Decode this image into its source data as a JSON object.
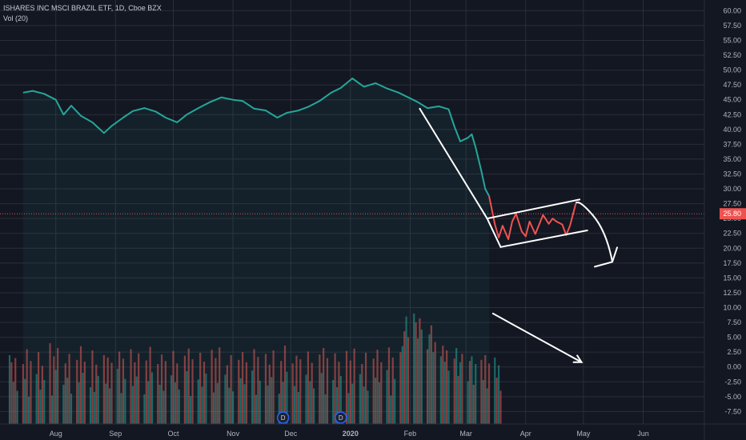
{
  "legend": {
    "symbol_line": "ISHARES INC MSCI BRAZIL ETF, 1D, Cboe BZX",
    "volume_line": "Vol (20)"
  },
  "price_badge": "25.80",
  "colors": {
    "background": "#131722",
    "grid": "#2a2e39",
    "up": "#26a69a",
    "down": "#ef5350",
    "axis_text": "#b2b5be",
    "annotation": "#ffffff"
  },
  "chart_data": [
    {
      "type": "line",
      "title": "ISHARES INC MSCI BRAZIL ETF",
      "x_ticks": [
        "Aug",
        "Sep",
        "Oct",
        "Nov",
        "Dec",
        "2020",
        "Feb",
        "Mar",
        "Apr",
        "May",
        "Jun"
      ],
      "y_ticks": [
        "60.00",
        "57.50",
        "55.00",
        "52.50",
        "50.00",
        "47.50",
        "45.00",
        "42.50",
        "40.00",
        "37.50",
        "35.00",
        "32.50",
        "30.00",
        "27.50",
        "25.00",
        "22.50",
        "20.00",
        "17.50",
        "15.00",
        "12.50",
        "10.00",
        "7.50",
        "5.00",
        "2.50",
        "0.00",
        "-2.50",
        "-5.00",
        "-7.50"
      ],
      "ylim": [
        -9.6,
        61.8
      ],
      "last_price": 25.8,
      "grid": true,
      "series": [
        {
          "role": "uptrend",
          "color": "#26a69a",
          "points": [
            [
              "2019-07-15",
              46.2
            ],
            [
              "2019-07-20",
              46.5
            ],
            [
              "2019-07-26",
              46.0
            ],
            [
              "2019-08-01",
              45.0
            ],
            [
              "2019-08-05",
              42.5
            ],
            [
              "2019-08-09",
              44.0
            ],
            [
              "2019-08-14",
              42.3
            ],
            [
              "2019-08-20",
              41.2
            ],
            [
              "2019-08-26",
              39.4
            ],
            [
              "2019-08-30",
              40.6
            ],
            [
              "2019-09-05",
              42.0
            ],
            [
              "2019-09-10",
              43.1
            ],
            [
              "2019-09-16",
              43.6
            ],
            [
              "2019-09-22",
              43.0
            ],
            [
              "2019-09-27",
              42.0
            ],
            [
              "2019-10-03",
              41.2
            ],
            [
              "2019-10-08",
              42.5
            ],
            [
              "2019-10-14",
              43.6
            ],
            [
              "2019-10-20",
              44.6
            ],
            [
              "2019-10-26",
              45.4
            ],
            [
              "2019-11-01",
              45.0
            ],
            [
              "2019-11-06",
              44.8
            ],
            [
              "2019-11-12",
              43.5
            ],
            [
              "2019-11-18",
              43.2
            ],
            [
              "2019-11-24",
              42.0
            ],
            [
              "2019-11-29",
              42.8
            ],
            [
              "2019-12-05",
              43.2
            ],
            [
              "2019-12-10",
              43.8
            ],
            [
              "2019-12-16",
              44.8
            ],
            [
              "2019-12-22",
              46.2
            ],
            [
              "2019-12-27",
              47.0
            ],
            [
              "2020-01-02",
              48.6
            ],
            [
              "2020-01-08",
              47.2
            ],
            [
              "2020-01-14",
              47.8
            ],
            [
              "2020-01-20",
              46.9
            ],
            [
              "2020-01-26",
              46.2
            ],
            [
              "2020-01-31",
              45.4
            ],
            [
              "2020-02-05",
              44.6
            ],
            [
              "2020-02-10",
              43.6
            ],
            [
              "2020-02-16",
              43.9
            ],
            [
              "2020-02-21",
              43.4
            ],
            [
              "2020-02-24",
              40.5
            ],
            [
              "2020-02-27",
              38.0
            ],
            [
              "2020-03-02",
              38.6
            ],
            [
              "2020-03-04",
              39.2
            ],
            [
              "2020-03-06",
              37.0
            ],
            [
              "2020-03-09",
              33.0
            ],
            [
              "2020-03-11",
              30.0
            ],
            [
              "2020-03-13",
              28.8
            ]
          ]
        },
        {
          "role": "downtrend",
          "color": "#ef5350",
          "points": [
            [
              "2020-03-13",
              28.8
            ],
            [
              "2020-03-16",
              24.0
            ],
            [
              "2020-03-18",
              21.8
            ],
            [
              "2020-03-20",
              23.8
            ],
            [
              "2020-03-23",
              21.5
            ],
            [
              "2020-03-25",
              24.5
            ],
            [
              "2020-03-27",
              25.8
            ],
            [
              "2020-03-30",
              22.8
            ],
            [
              "2020-04-01",
              22.0
            ],
            [
              "2020-04-03",
              24.5
            ],
            [
              "2020-04-06",
              22.4
            ],
            [
              "2020-04-08",
              24.0
            ],
            [
              "2020-04-10",
              25.6
            ],
            [
              "2020-04-13",
              24.1
            ],
            [
              "2020-04-15",
              25.0
            ],
            [
              "2020-04-17",
              24.5
            ],
            [
              "2020-04-20",
              24.0
            ],
            [
              "2020-04-22",
              22.2
            ],
            [
              "2020-04-24",
              23.8
            ],
            [
              "2020-04-27",
              27.5
            ]
          ]
        }
      ],
      "volume_bars": {
        "start": "2019-07-08",
        "weekday_spacing": true,
        "values": [
          2.0,
          0.8,
          -2.5,
          1.5,
          -4.0,
          0.5,
          -2.0,
          3.0,
          -5.0,
          1.0,
          -1.2,
          2.5,
          -3.8,
          0.2,
          -2.2,
          4.0,
          -4.8,
          1.8,
          -0.5,
          3.2,
          -3.0,
          0.6,
          -1.8,
          2.2,
          -4.5,
          1.2,
          -2.6,
          3.5,
          -1.0,
          0.9,
          -3.4,
          2.8,
          -4.2,
          0.4,
          -1.5,
          2.0,
          -2.8,
          1.6,
          -3.6,
          0.7,
          -0.3,
          2.6,
          -4.4,
          1.4,
          -2.0,
          3.0,
          -3.2,
          0.8,
          -1.6,
          2.3,
          -4.6,
          1.1,
          -2.4,
          3.4,
          -0.9,
          0.5,
          -3.0,
          2.1,
          -4.0,
          1.0,
          -1.4,
          2.7,
          -2.6,
          0.6,
          -3.8,
          1.9,
          -0.7,
          3.1,
          -4.9,
          1.3,
          -2.1,
          2.4,
          -3.3,
          0.9,
          -1.1,
          2.9,
          -4.3,
          1.5,
          -2.7,
          3.3,
          -1.3,
          0.3,
          -3.5,
          2.0,
          -4.1,
          1.2,
          -1.9,
          2.5,
          -2.9,
          0.8,
          -0.6,
          3.0,
          -4.7,
          1.7,
          -2.3,
          2.2,
          -3.1,
          0.4,
          -1.7,
          2.8,
          -4.5,
          1.0,
          -2.5,
          3.6,
          -0.8,
          0.6,
          -3.2,
          1.9,
          -4.2,
          1.3,
          -1.3,
          2.6,
          -2.4,
          0.7,
          -3.6,
          2.1,
          -1.0,
          3.2,
          -4.6,
          1.5,
          -2.2,
          2.3,
          -3.4,
          0.9,
          -1.5,
          2.7,
          -4.4,
          1.1,
          -2.8,
          3.1,
          -1.2,
          0.5,
          -3.3,
          2.4,
          -4.0,
          1.4,
          -1.8,
          2.9,
          -2.6,
          0.8,
          -0.5,
          3.3,
          -4.8,
          1.6,
          -2.0,
          2.5,
          3.5,
          6.0,
          8.5,
          5.0,
          9.0,
          7.5,
          4.8,
          8.2,
          6.3,
          3.0,
          5.5,
          7.0,
          2.5,
          4.2,
          1.8,
          3.6,
          0.9,
          2.8,
          -0.6,
          1.4,
          3.2,
          -1.5,
          0.8,
          2.2,
          -2.4,
          1.0,
          1.8,
          -3.0,
          0.5,
          1.2,
          -2.2,
          2.0,
          -3.6,
          0.6,
          1.6,
          -1.8,
          0.3,
          -4.0
        ]
      },
      "events": [
        {
          "date": "2019-11-27",
          "label": "D"
        },
        {
          "date": "2019-12-27",
          "label": "D"
        }
      ],
      "annotations": [
        {
          "type": "arrow-line",
          "from": [
            "2020-02-06",
            43.5
          ],
          "to": [
            "2020-03-12",
            25.0
          ]
        },
        {
          "type": "channel-upper",
          "from": [
            "2020-03-12",
            25.0
          ],
          "to": [
            "2020-04-29",
            28.2
          ]
        },
        {
          "type": "channel-lower",
          "from": [
            "2020-03-19",
            20.2
          ],
          "to": [
            "2020-05-03",
            23.0
          ]
        },
        {
          "type": "channel-left",
          "from": [
            "2020-03-12",
            25.0
          ],
          "to": [
            "2020-03-19",
            20.2
          ]
        },
        {
          "type": "curved-arrow",
          "points": [
            [
              "2020-04-27",
              27.6
            ],
            [
              "2020-04-29",
              28.2
            ],
            [
              "2020-05-06",
              25.5
            ],
            [
              "2020-05-16",
              17.7
            ]
          ]
        },
        {
          "type": "arrow-line",
          "from": [
            "2020-03-15",
            9.0
          ],
          "to": [
            "2020-04-30",
            0.8
          ]
        }
      ]
    }
  ]
}
